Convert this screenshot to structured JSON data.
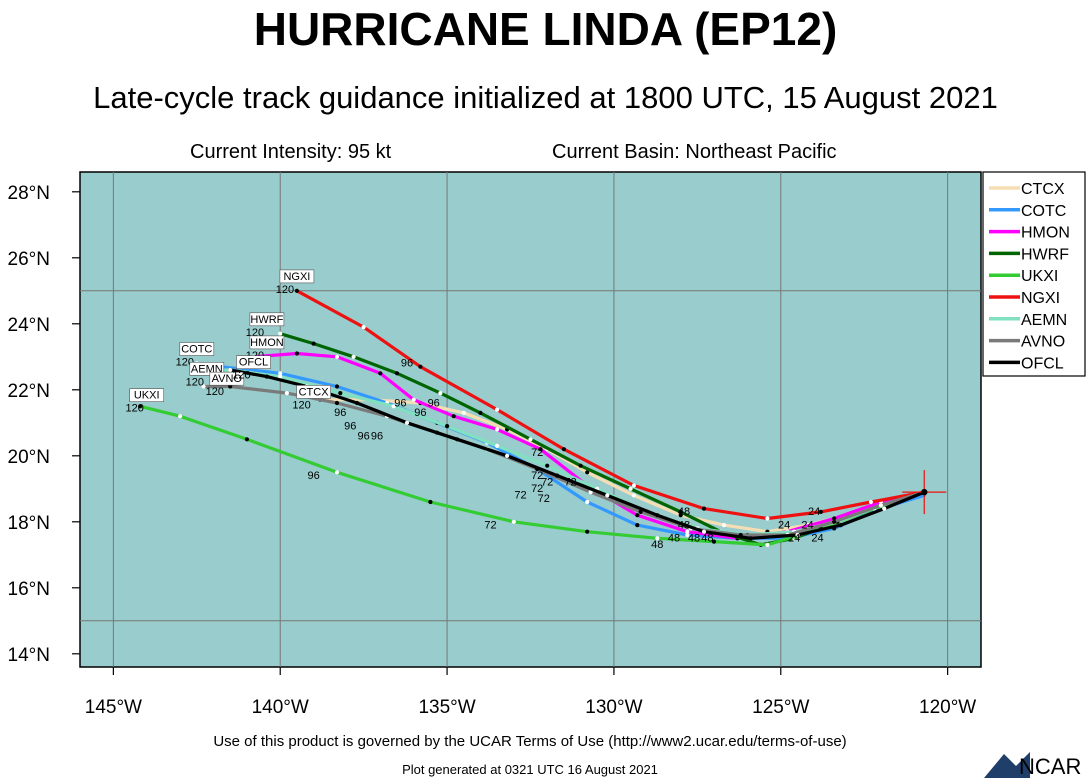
{
  "header": {
    "title": "HURRICANE LINDA (EP12)",
    "subtitle": "Late-cycle track guidance initialized at 1800 UTC, 15 August 2021",
    "intensity": "Current Intensity: 95 kt",
    "basin": "Current Basin: Northeast Pacific"
  },
  "map": {
    "ocean_color": "#99CCCC",
    "gridline_color": "#777777"
  },
  "axes": {
    "lon_labels": [
      "145°W",
      "140°W",
      "135°W",
      "130°W",
      "125°W",
      "120°W"
    ],
    "lat_labels": [
      "14°N",
      "16°N",
      "18°N",
      "20°N",
      "22°N",
      "24°N",
      "26°N",
      "28°N"
    ]
  },
  "chart_data": {
    "type": "map-tracks",
    "xlim": [
      -146,
      -119
    ],
    "ylim": [
      13.6,
      28.6
    ],
    "lon_ticks": [
      -145,
      -140,
      -135,
      -130,
      -125,
      -120
    ],
    "lat_ticks": [
      14,
      16,
      18,
      20,
      22,
      24,
      26,
      28
    ],
    "grid_lon": [
      -145,
      -140,
      -135,
      -130,
      -125,
      -120
    ],
    "grid_lat": [
      15,
      25
    ],
    "init_position": {
      "lon": -120.7,
      "lat": 18.9
    },
    "series": [
      {
        "name": "CTCX",
        "color": "#F5DEB3",
        "points": [
          [
            -120.7,
            18.9
          ],
          [
            -121.8,
            18.5
          ],
          [
            -123.0,
            18.2
          ],
          [
            -124.2,
            17.9
          ],
          [
            -125.4,
            17.7
          ],
          [
            -126.7,
            17.9
          ],
          [
            -128.0,
            18.2
          ],
          [
            -129.4,
            18.8
          ],
          [
            -130.8,
            19.5
          ],
          [
            -132.0,
            20.2
          ],
          [
            -133.2,
            20.8
          ],
          [
            -134.5,
            21.3
          ],
          [
            -135.8,
            21.6
          ],
          [
            -137.3,
            21.7
          ],
          [
            -138.8,
            21.7
          ]
        ]
      },
      {
        "name": "COTC",
        "color": "#3399FF",
        "points": [
          [
            -120.7,
            18.8
          ],
          [
            -122.0,
            18.4
          ],
          [
            -123.4,
            17.8
          ],
          [
            -124.8,
            17.5
          ],
          [
            -126.3,
            17.5
          ],
          [
            -127.8,
            17.6
          ],
          [
            -129.3,
            17.9
          ],
          [
            -130.8,
            18.6
          ],
          [
            -132.3,
            19.6
          ],
          [
            -133.8,
            20.4
          ],
          [
            -135.3,
            21.0
          ],
          [
            -136.8,
            21.6
          ],
          [
            -138.3,
            22.1
          ],
          [
            -140.0,
            22.5
          ],
          [
            -141.8,
            22.7
          ],
          [
            -142.5,
            22.8
          ]
        ]
      },
      {
        "name": "HMON",
        "color": "#FF00FF",
        "points": [
          [
            -120.7,
            18.9
          ],
          [
            -122.0,
            18.6
          ],
          [
            -123.4,
            18.1
          ],
          [
            -124.8,
            17.7
          ],
          [
            -126.3,
            17.5
          ],
          [
            -127.8,
            17.7
          ],
          [
            -129.3,
            18.2
          ],
          [
            -130.8,
            19.1
          ],
          [
            -132.2,
            20.2
          ],
          [
            -133.5,
            20.8
          ],
          [
            -134.8,
            21.2
          ],
          [
            -136.0,
            21.7
          ],
          [
            -137.0,
            22.5
          ],
          [
            -138.3,
            23.0
          ],
          [
            -139.5,
            23.1
          ],
          [
            -140.8,
            23.0
          ]
        ]
      },
      {
        "name": "HWRF",
        "color": "#006400",
        "points": [
          [
            -120.7,
            18.9
          ],
          [
            -122.0,
            18.5
          ],
          [
            -123.3,
            18.0
          ],
          [
            -124.6,
            17.5
          ],
          [
            -125.6,
            17.3
          ],
          [
            -126.8,
            17.7
          ],
          [
            -128.0,
            18.3
          ],
          [
            -129.5,
            19.0
          ],
          [
            -131.0,
            19.7
          ],
          [
            -132.5,
            20.5
          ],
          [
            -134.0,
            21.3
          ],
          [
            -135.2,
            21.9
          ],
          [
            -136.5,
            22.5
          ],
          [
            -137.8,
            23.0
          ],
          [
            -139.0,
            23.4
          ],
          [
            -140.0,
            23.7
          ]
        ]
      },
      {
        "name": "UKXI",
        "color": "#33CC33",
        "points": [
          [
            -120.7,
            18.9
          ],
          [
            -122.2,
            18.4
          ],
          [
            -123.8,
            17.8
          ],
          [
            -125.4,
            17.3
          ],
          [
            -127.0,
            17.4
          ],
          [
            -128.7,
            17.5
          ],
          [
            -130.8,
            17.7
          ],
          [
            -133.0,
            18.0
          ],
          [
            -135.5,
            18.6
          ],
          [
            -138.3,
            19.5
          ],
          [
            -141.0,
            20.5
          ],
          [
            -143.0,
            21.2
          ],
          [
            -144.2,
            21.5
          ]
        ]
      },
      {
        "name": "NGXI",
        "color": "#EE1111",
        "points": [
          [
            -120.7,
            18.9
          ],
          [
            -122.3,
            18.6
          ],
          [
            -123.8,
            18.3
          ],
          [
            -125.4,
            18.1
          ],
          [
            -127.3,
            18.4
          ],
          [
            -129.4,
            19.1
          ],
          [
            -131.5,
            20.2
          ],
          [
            -133.5,
            21.4
          ],
          [
            -135.8,
            22.7
          ],
          [
            -137.5,
            23.9
          ],
          [
            -139.5,
            25.0
          ]
        ]
      },
      {
        "name": "AEMN",
        "color": "#80E0C0",
        "points": [
          [
            -120.7,
            18.9
          ],
          [
            -122.0,
            18.5
          ],
          [
            -123.3,
            18.0
          ],
          [
            -124.6,
            17.7
          ],
          [
            -126.0,
            17.6
          ],
          [
            -127.5,
            17.8
          ],
          [
            -129.0,
            18.3
          ],
          [
            -130.5,
            19.0
          ],
          [
            -132.0,
            19.7
          ],
          [
            -133.5,
            20.3
          ],
          [
            -135.0,
            20.9
          ],
          [
            -136.6,
            21.5
          ],
          [
            -138.2,
            21.9
          ],
          [
            -140.0,
            22.4
          ],
          [
            -141.5,
            22.6
          ],
          [
            -142.3,
            22.6
          ]
        ]
      },
      {
        "name": "AVNO",
        "color": "#7A7A7A",
        "points": [
          [
            -120.7,
            18.9
          ],
          [
            -122.0,
            18.5
          ],
          [
            -123.4,
            18.0
          ],
          [
            -124.8,
            17.6
          ],
          [
            -126.2,
            17.6
          ],
          [
            -127.7,
            17.8
          ],
          [
            -129.2,
            18.3
          ],
          [
            -130.7,
            18.9
          ],
          [
            -132.3,
            19.6
          ],
          [
            -133.8,
            20.2
          ],
          [
            -135.3,
            20.7
          ],
          [
            -136.8,
            21.2
          ],
          [
            -138.3,
            21.6
          ],
          [
            -139.8,
            21.9
          ],
          [
            -141.5,
            22.1
          ],
          [
            -142.3,
            22.1
          ]
        ]
      },
      {
        "name": "OFCL",
        "color": "#000000",
        "points": [
          [
            -120.7,
            18.9
          ],
          [
            -121.9,
            18.4
          ],
          [
            -123.2,
            17.9
          ],
          [
            -124.5,
            17.6
          ],
          [
            -125.9,
            17.5
          ],
          [
            -127.3,
            17.7
          ],
          [
            -128.7,
            18.2
          ],
          [
            -130.2,
            18.8
          ],
          [
            -131.7,
            19.4
          ],
          [
            -133.2,
            20.0
          ],
          [
            -134.7,
            20.5
          ],
          [
            -136.2,
            21.0
          ],
          [
            -137.7,
            21.6
          ],
          [
            -139.2,
            22.1
          ],
          [
            -140.4,
            22.4
          ],
          [
            -141.5,
            22.6
          ]
        ]
      }
    ],
    "tags": [
      {
        "text": "NGXI",
        "lon": -139.5,
        "lat": 25.3,
        "hour": "120"
      },
      {
        "text": "HWRF",
        "lon": -140.4,
        "lat": 24.0,
        "hour": "120"
      },
      {
        "text": "HMON",
        "lon": -140.4,
        "lat": 23.3,
        "hour": "120"
      },
      {
        "text": "COTC",
        "lon": -142.5,
        "lat": 23.1,
        "hour": "120"
      },
      {
        "text": "AEMN",
        "lon": -142.2,
        "lat": 22.5,
        "hour": "120"
      },
      {
        "text": "AVNO",
        "lon": -141.6,
        "lat": 22.2,
        "hour": "120"
      },
      {
        "text": "OFCL",
        "lon": -140.8,
        "lat": 22.7,
        "hour": "120"
      },
      {
        "text": "CTCX",
        "lon": -139.0,
        "lat": 21.8,
        "hour": "120"
      },
      {
        "text": "UKXI",
        "lon": -144.0,
        "lat": 21.7,
        "hour": "120"
      }
    ],
    "hour_labels": [
      {
        "text": "96",
        "lon": -136.2,
        "lat": 22.7
      },
      {
        "text": "96",
        "lon": -136.4,
        "lat": 21.5
      },
      {
        "text": "96",
        "lon": -135.8,
        "lat": 21.2
      },
      {
        "text": "96",
        "lon": -135.4,
        "lat": 21.5
      },
      {
        "text": "96",
        "lon": -138.2,
        "lat": 21.2
      },
      {
        "text": "96",
        "lon": -137.9,
        "lat": 20.8
      },
      {
        "text": "96",
        "lon": -137.5,
        "lat": 20.5
      },
      {
        "text": "96",
        "lon": -137.1,
        "lat": 20.5
      },
      {
        "text": "96",
        "lon": -139.0,
        "lat": 19.3
      },
      {
        "text": "72",
        "lon": -132.3,
        "lat": 20.0
      },
      {
        "text": "72",
        "lon": -132.3,
        "lat": 19.3
      },
      {
        "text": "72",
        "lon": -132.0,
        "lat": 19.1
      },
      {
        "text": "72",
        "lon": -131.3,
        "lat": 19.1
      },
      {
        "text": "72",
        "lon": -132.3,
        "lat": 18.9
      },
      {
        "text": "72",
        "lon": -132.8,
        "lat": 18.7
      },
      {
        "text": "72",
        "lon": -132.1,
        "lat": 18.6
      },
      {
        "text": "72",
        "lon": -133.7,
        "lat": 17.8
      },
      {
        "text": "48",
        "lon": -127.9,
        "lat": 18.2
      },
      {
        "text": "48",
        "lon": -127.9,
        "lat": 17.8
      },
      {
        "text": "48",
        "lon": -128.7,
        "lat": 17.2
      },
      {
        "text": "48",
        "lon": -128.2,
        "lat": 17.4
      },
      {
        "text": "48",
        "lon": -127.6,
        "lat": 17.4
      },
      {
        "text": "48",
        "lon": -127.2,
        "lat": 17.4
      },
      {
        "text": "24",
        "lon": -124.9,
        "lat": 17.8
      },
      {
        "text": "24",
        "lon": -124.2,
        "lat": 17.8
      },
      {
        "text": "24",
        "lon": -124.0,
        "lat": 18.2
      },
      {
        "text": "24",
        "lon": -123.9,
        "lat": 17.4
      },
      {
        "text": "24",
        "lon": -124.6,
        "lat": 17.4
      }
    ]
  },
  "legend": {
    "items": [
      {
        "label": "CTCX",
        "color": "#F5DEB3"
      },
      {
        "label": "COTC",
        "color": "#3399FF"
      },
      {
        "label": "HMON",
        "color": "#FF00FF"
      },
      {
        "label": "HWRF",
        "color": "#006400"
      },
      {
        "label": "UKXI",
        "color": "#33CC33"
      },
      {
        "label": "NGXI",
        "color": "#EE1111"
      },
      {
        "label": "AEMN",
        "color": "#80E0C0"
      },
      {
        "label": "AVNO",
        "color": "#7A7A7A"
      },
      {
        "label": "OFCL",
        "color": "#000000"
      }
    ]
  },
  "footer": {
    "terms": "Use of this product is governed by the UCAR Terms of Use (http://www2.ucar.edu/terms-of-use)",
    "generated": "Plot generated at 0321 UTC   16 August 2021",
    "logo_text": "NCAR"
  }
}
